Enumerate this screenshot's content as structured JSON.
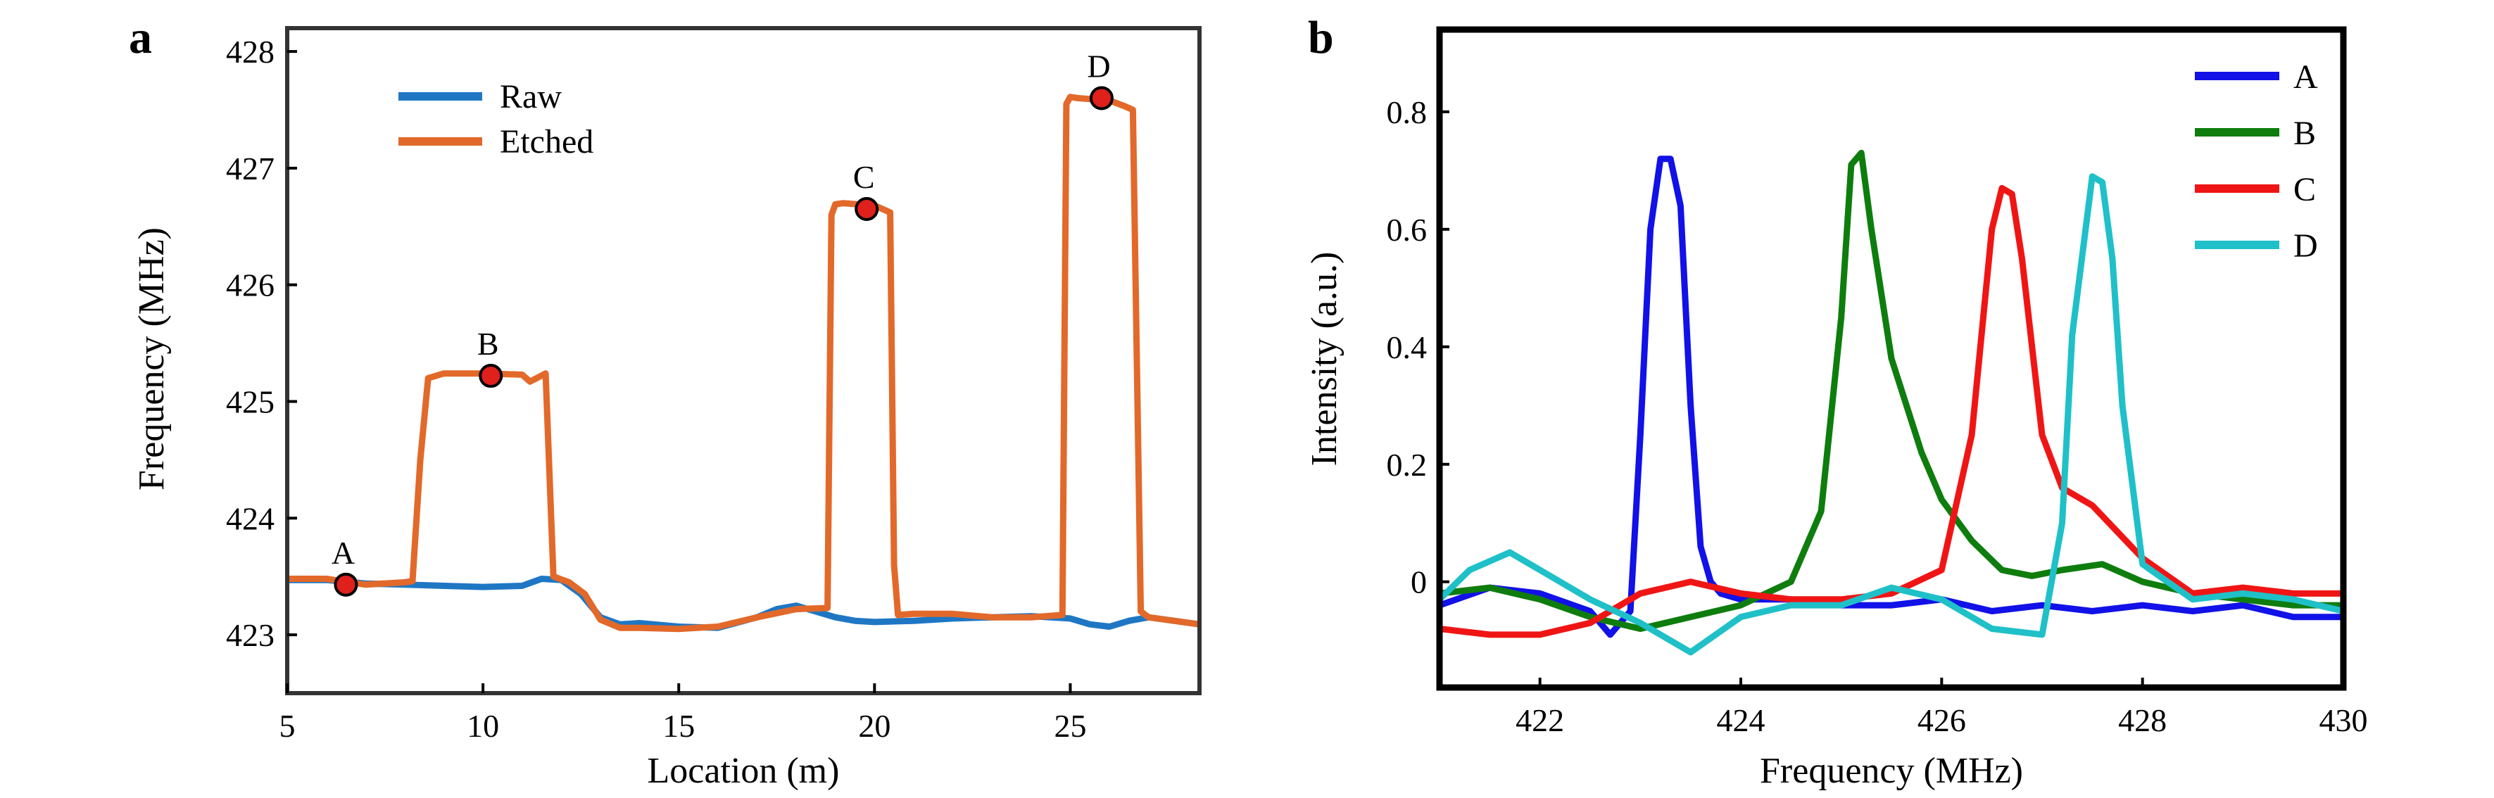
{
  "chart_data": [
    {
      "panel": "a",
      "type": "line",
      "xlabel": "Location (m)",
      "ylabel": "Frequency (MHz)",
      "xlim": [
        5,
        28.3
      ],
      "ylim": [
        422.5,
        428.2
      ],
      "xticks": [
        "5",
        "10",
        "15",
        "20",
        "25"
      ],
      "yticks": [
        "423",
        "424",
        "425",
        "426",
        "427",
        "428"
      ],
      "legend_position": "top-left",
      "series": [
        {
          "name": "Raw",
          "color": "#1f77c4",
          "x": [
            5,
            6,
            7,
            8,
            9,
            10,
            11,
            11.5,
            12,
            12.5,
            13,
            13.5,
            14,
            15,
            16,
            17,
            17.5,
            18,
            18.5,
            19,
            19.5,
            20,
            21,
            22,
            23,
            24,
            25,
            25.5,
            26,
            26.5,
            27,
            28.3
          ],
          "y": [
            423.47,
            423.47,
            423.44,
            423.43,
            423.42,
            423.41,
            423.42,
            423.48,
            423.47,
            423.35,
            423.15,
            423.09,
            423.1,
            423.07,
            423.06,
            423.15,
            423.22,
            423.25,
            423.2,
            423.15,
            423.12,
            423.11,
            423.12,
            423.14,
            423.15,
            423.16,
            423.14,
            423.09,
            423.07,
            423.12,
            423.15,
            423.09
          ]
        },
        {
          "name": "Etched",
          "color": "#e2692a",
          "x": [
            5,
            6,
            7,
            8,
            8.2,
            8.4,
            8.6,
            9,
            10,
            11,
            11.2,
            11.6,
            11.8,
            12.2,
            12.6,
            13,
            13.5,
            14,
            15,
            16,
            17,
            18,
            18.8,
            18.9,
            19,
            19.2,
            20,
            20.4,
            20.5,
            20.6,
            21,
            22,
            23,
            24,
            24.8,
            24.9,
            25,
            25.2,
            26,
            26.4,
            26.6,
            26.8,
            27,
            28.3
          ],
          "y": [
            423.48,
            423.48,
            423.43,
            423.45,
            423.46,
            424.5,
            425.2,
            425.24,
            425.24,
            425.23,
            425.17,
            425.24,
            423.5,
            423.45,
            423.35,
            423.13,
            423.06,
            423.06,
            423.05,
            423.07,
            423.15,
            423.22,
            423.23,
            426.6,
            426.69,
            426.7,
            426.68,
            426.62,
            423.6,
            423.17,
            423.18,
            423.18,
            423.15,
            423.15,
            423.17,
            427.55,
            427.61,
            427.6,
            427.58,
            427.53,
            427.5,
            423.2,
            423.15,
            423.09
          ]
        }
      ],
      "points": [
        {
          "label": "A",
          "x": 6.5,
          "y": 423.43
        },
        {
          "label": "B",
          "x": 10.2,
          "y": 425.22
        },
        {
          "label": "C",
          "x": 19.8,
          "y": 426.65
        },
        {
          "label": "D",
          "x": 25.8,
          "y": 427.6
        }
      ],
      "point_color": "#e0201b"
    },
    {
      "panel": "b",
      "type": "line",
      "xlabel": "Frequency (MHz)",
      "ylabel": "Intensity (a.u.)",
      "xlim": [
        421,
        430
      ],
      "ylim": [
        -0.18,
        0.94
      ],
      "xticks": [
        "422",
        "424",
        "426",
        "428",
        "430"
      ],
      "yticks": [
        "0",
        "0.2",
        "0.4",
        "0.6",
        "0.8"
      ],
      "legend_position": "top-right",
      "series": [
        {
          "name": "A",
          "color": "#1111e8",
          "x": [
            421,
            421.5,
            422,
            422.5,
            422.7,
            422.9,
            423,
            423.1,
            423.2,
            423.3,
            423.4,
            423.5,
            423.6,
            423.7,
            423.8,
            424,
            424.5,
            425,
            425.5,
            426,
            426.5,
            427,
            427.5,
            428,
            428.5,
            429,
            429.5,
            430
          ],
          "y": [
            -0.04,
            -0.01,
            -0.02,
            -0.05,
            -0.09,
            -0.05,
            0.25,
            0.6,
            0.72,
            0.72,
            0.64,
            0.3,
            0.06,
            0.0,
            -0.02,
            -0.03,
            -0.03,
            -0.04,
            -0.04,
            -0.03,
            -0.05,
            -0.04,
            -0.05,
            -0.04,
            -0.05,
            -0.04,
            -0.06,
            -0.06
          ]
        },
        {
          "name": "B",
          "color": "#0e7d0e",
          "x": [
            421,
            421.5,
            422,
            422.5,
            423,
            423.5,
            424,
            424.5,
            424.8,
            425,
            425.1,
            425.2,
            425.3,
            425.5,
            425.8,
            426,
            426.3,
            426.6,
            426.9,
            427.2,
            427.6,
            428,
            428.5,
            429,
            429.5,
            430
          ],
          "y": [
            -0.02,
            -0.01,
            -0.03,
            -0.06,
            -0.08,
            -0.06,
            -0.04,
            0.0,
            0.12,
            0.45,
            0.71,
            0.73,
            0.6,
            0.38,
            0.22,
            0.14,
            0.07,
            0.02,
            0.01,
            0.02,
            0.03,
            0.0,
            -0.02,
            -0.03,
            -0.04,
            -0.04
          ]
        },
        {
          "name": "C",
          "color": "#f01515",
          "x": [
            421,
            421.5,
            422,
            422.5,
            423,
            423.5,
            424,
            424.5,
            425,
            425.5,
            426,
            426.3,
            426.5,
            426.6,
            426.7,
            426.8,
            427,
            427.2,
            427.5,
            428,
            428.5,
            429,
            429.5,
            430
          ],
          "y": [
            -0.08,
            -0.09,
            -0.09,
            -0.07,
            -0.02,
            0.0,
            -0.02,
            -0.03,
            -0.03,
            -0.02,
            0.02,
            0.25,
            0.6,
            0.67,
            0.66,
            0.55,
            0.25,
            0.16,
            0.13,
            0.04,
            -0.02,
            -0.01,
            -0.02,
            -0.02
          ]
        },
        {
          "name": "D",
          "color": "#1fc0c8",
          "x": [
            421,
            421.3,
            421.7,
            422,
            422.5,
            423,
            423.5,
            424,
            424.5,
            425,
            425.5,
            426,
            426.5,
            427,
            427.2,
            427.3,
            427.5,
            427.6,
            427.7,
            427.8,
            428,
            428.5,
            429,
            429.5,
            430
          ],
          "y": [
            -0.03,
            0.02,
            0.05,
            0.02,
            -0.03,
            -0.07,
            -0.12,
            -0.06,
            -0.04,
            -0.04,
            -0.01,
            -0.03,
            -0.08,
            -0.09,
            0.1,
            0.42,
            0.69,
            0.68,
            0.55,
            0.3,
            0.03,
            -0.03,
            -0.02,
            -0.03,
            -0.05
          ]
        }
      ]
    }
  ]
}
